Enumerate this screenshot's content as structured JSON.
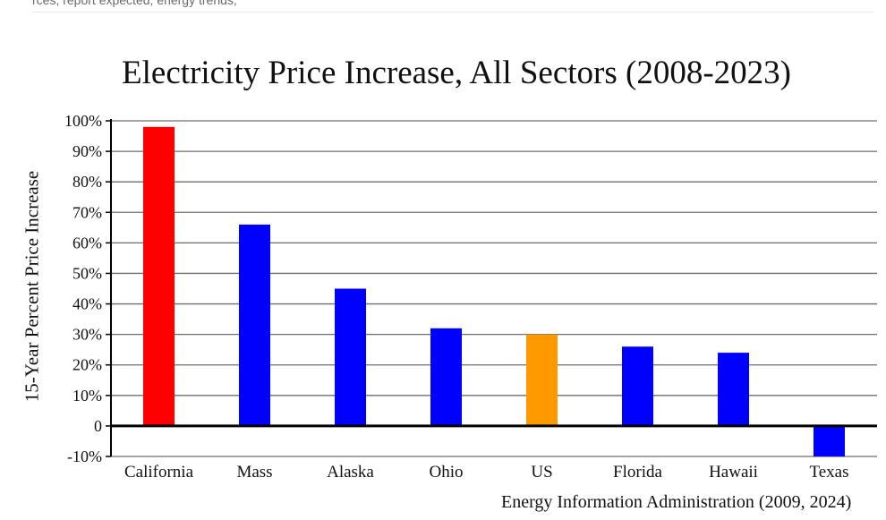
{
  "page": {
    "header_snippet": "rces, report expected, energy trends,"
  },
  "chart_data": {
    "type": "bar",
    "title": "Electricity Price Increase, All Sectors (2008-2023)",
    "ylabel": "15-Year Percent Price Increase",
    "xlabel": "",
    "source": "Energy Information Administration (2009, 2024)",
    "ylim": [
      -10,
      100
    ],
    "y_ticks": [
      -10,
      0,
      10,
      20,
      30,
      40,
      50,
      60,
      70,
      80,
      90,
      100
    ],
    "y_tick_labels": [
      "-10%",
      "0",
      "10%",
      "20%",
      "30%",
      "40%",
      "50%",
      "60%",
      "70%",
      "80%",
      "90%",
      "100%"
    ],
    "grid": true,
    "categories": [
      "California",
      "Mass",
      "Alaska",
      "Ohio",
      "US",
      "Florida",
      "Hawaii",
      "Texas"
    ],
    "values": [
      98,
      66,
      45,
      32,
      30,
      26,
      24,
      -10
    ],
    "colors": [
      "#ff0000",
      "#0000ff",
      "#0000ff",
      "#0000ff",
      "#ff9900",
      "#0000ff",
      "#0000ff",
      "#0000ff"
    ]
  }
}
